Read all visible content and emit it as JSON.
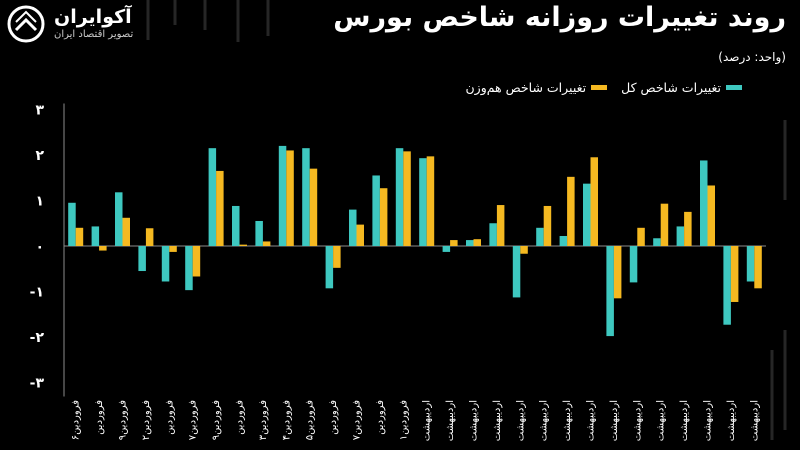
{
  "header": {
    "title": "روند تغییرات روزانه شاخص بورس",
    "unit": "(واحد: درصد)"
  },
  "brand": {
    "name": "آکوایران",
    "tagline": "تصویر اقتصاد ایران"
  },
  "colors": {
    "total": "#3ec8c0",
    "equal": "#f5b921",
    "axis": "#8c8c8c",
    "text": "#ffffff"
  },
  "chart_data": {
    "type": "bar",
    "title": "روند تغییرات روزانه شاخص بورس",
    "ylim": [
      -3,
      3
    ],
    "yticks": [
      "۳",
      "۲",
      "۱",
      "۰",
      "-۱",
      "-۲",
      "-۳"
    ],
    "ytick_values": [
      3,
      2,
      1,
      0,
      -1,
      -2,
      -3
    ],
    "legend_position": "top-right",
    "categories": [
      "فروردین۶",
      "فروردین",
      "فروردین۹",
      "فروردین۲",
      "فروردین",
      "فروردین۷",
      "فروردین۹",
      "فروردین",
      "فروردین۳",
      "فروردین۴",
      "فروردین۵",
      "فروردین",
      "فروردین۷",
      "فروردین",
      "فروردین۱",
      "اردیبهشت",
      "اردیبهشت",
      "اردیبهشت",
      "اردیبهشت",
      "اردیبهشت",
      "اردیبهشت",
      "اردیبهشت",
      "اردیبهشت",
      "اردیبهشت",
      "اردیبهشت",
      "اردیبهشت",
      "اردیبهشت",
      "اردیبهشت",
      "اردیبهشت",
      "اردیبهشت"
    ],
    "series": [
      {
        "name": "تغییرات شاخص کل",
        "values": [
          0.95,
          0.43,
          1.18,
          -0.55,
          -0.78,
          -0.97,
          2.15,
          0.88,
          0.55,
          2.2,
          2.15,
          -0.93,
          0.8,
          1.55,
          2.15,
          1.93,
          -0.13,
          0.13,
          0.5,
          -1.13,
          0.4,
          0.22,
          1.37,
          -1.98,
          -0.8,
          0.17,
          0.43,
          1.88,
          -1.73,
          -0.78
        ]
      },
      {
        "name": "تغییرات شاخص هم‌وزن",
        "values": [
          0.4,
          -0.1,
          0.62,
          0.39,
          -0.13,
          -0.67,
          1.65,
          0.03,
          0.1,
          2.1,
          1.7,
          -0.48,
          0.47,
          1.27,
          2.08,
          1.97,
          0.13,
          0.15,
          0.9,
          -0.17,
          0.88,
          1.52,
          1.95,
          -1.15,
          0.4,
          0.93,
          0.75,
          1.33,
          -1.23,
          -0.93
        ]
      }
    ]
  }
}
